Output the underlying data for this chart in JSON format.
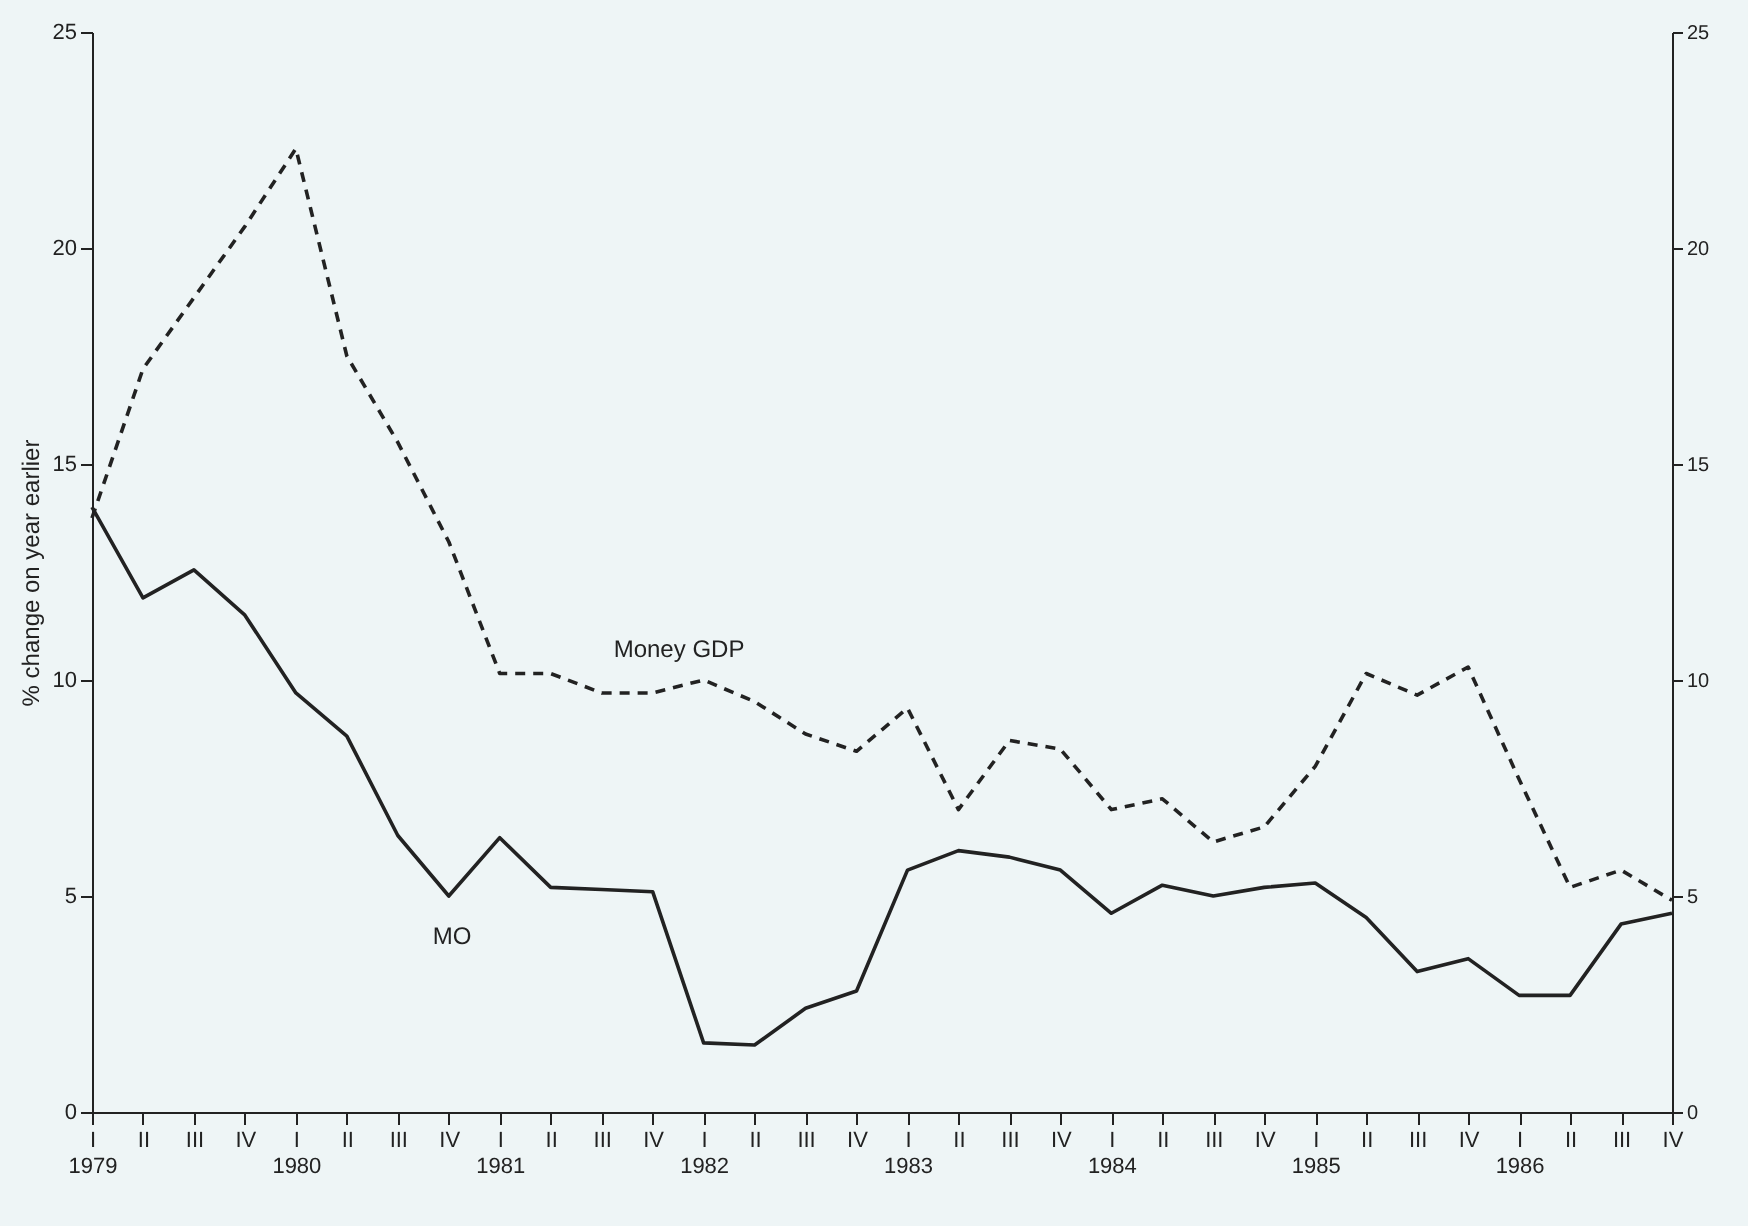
{
  "chart_data": {
    "type": "line",
    "ylabel": "% change on year earlier",
    "categories": [
      "I\n1979",
      "II",
      "III",
      "IV",
      "I\n1980",
      "II",
      "III",
      "IV",
      "I\n1981",
      "II",
      "III",
      "IV",
      "I\n1982",
      "II",
      "III",
      "IV",
      "I\n1983",
      "II",
      "III",
      "IV",
      "I\n1984",
      "II",
      "III",
      "IV",
      "I\n1985",
      "II",
      "III",
      "IV",
      "I\n1986",
      "II",
      "III",
      "IV"
    ],
    "series": [
      {
        "name": "Money GDP",
        "color": "#222222",
        "line_style": "dashed",
        "values": [
          13.75,
          17.2,
          18.85,
          20.5,
          22.3,
          17.5,
          15.5,
          13.2,
          10.15,
          10.15,
          9.7,
          9.7,
          10.0,
          9.5,
          8.75,
          8.35,
          9.35,
          7.0,
          8.6,
          8.4,
          7.0,
          7.25,
          6.25,
          6.6,
          8.0,
          10.15,
          9.65,
          10.3,
          7.7,
          5.2,
          5.6,
          4.9
        ]
      },
      {
        "name": "MO",
        "color": "#222222",
        "line_style": "solid",
        "values": [
          14.0,
          11.9,
          12.55,
          11.5,
          9.7,
          8.7,
          6.4,
          5.0,
          6.35,
          5.2,
          5.15,
          5.1,
          1.6,
          1.55,
          2.4,
          2.8,
          5.6,
          6.05,
          5.9,
          5.6,
          4.6,
          5.25,
          5.0,
          5.2,
          5.3,
          4.5,
          3.25,
          3.55,
          2.7,
          2.7,
          4.35,
          4.6
        ]
      }
    ],
    "ylim": [
      0,
      25
    ],
    "yticks": [
      0,
      5,
      10,
      15,
      20,
      25
    ],
    "y2lim": [
      0,
      25
    ],
    "y2ticks": [
      0,
      5,
      10,
      15,
      20,
      25
    ],
    "grid": false,
    "marker": "none"
  }
}
